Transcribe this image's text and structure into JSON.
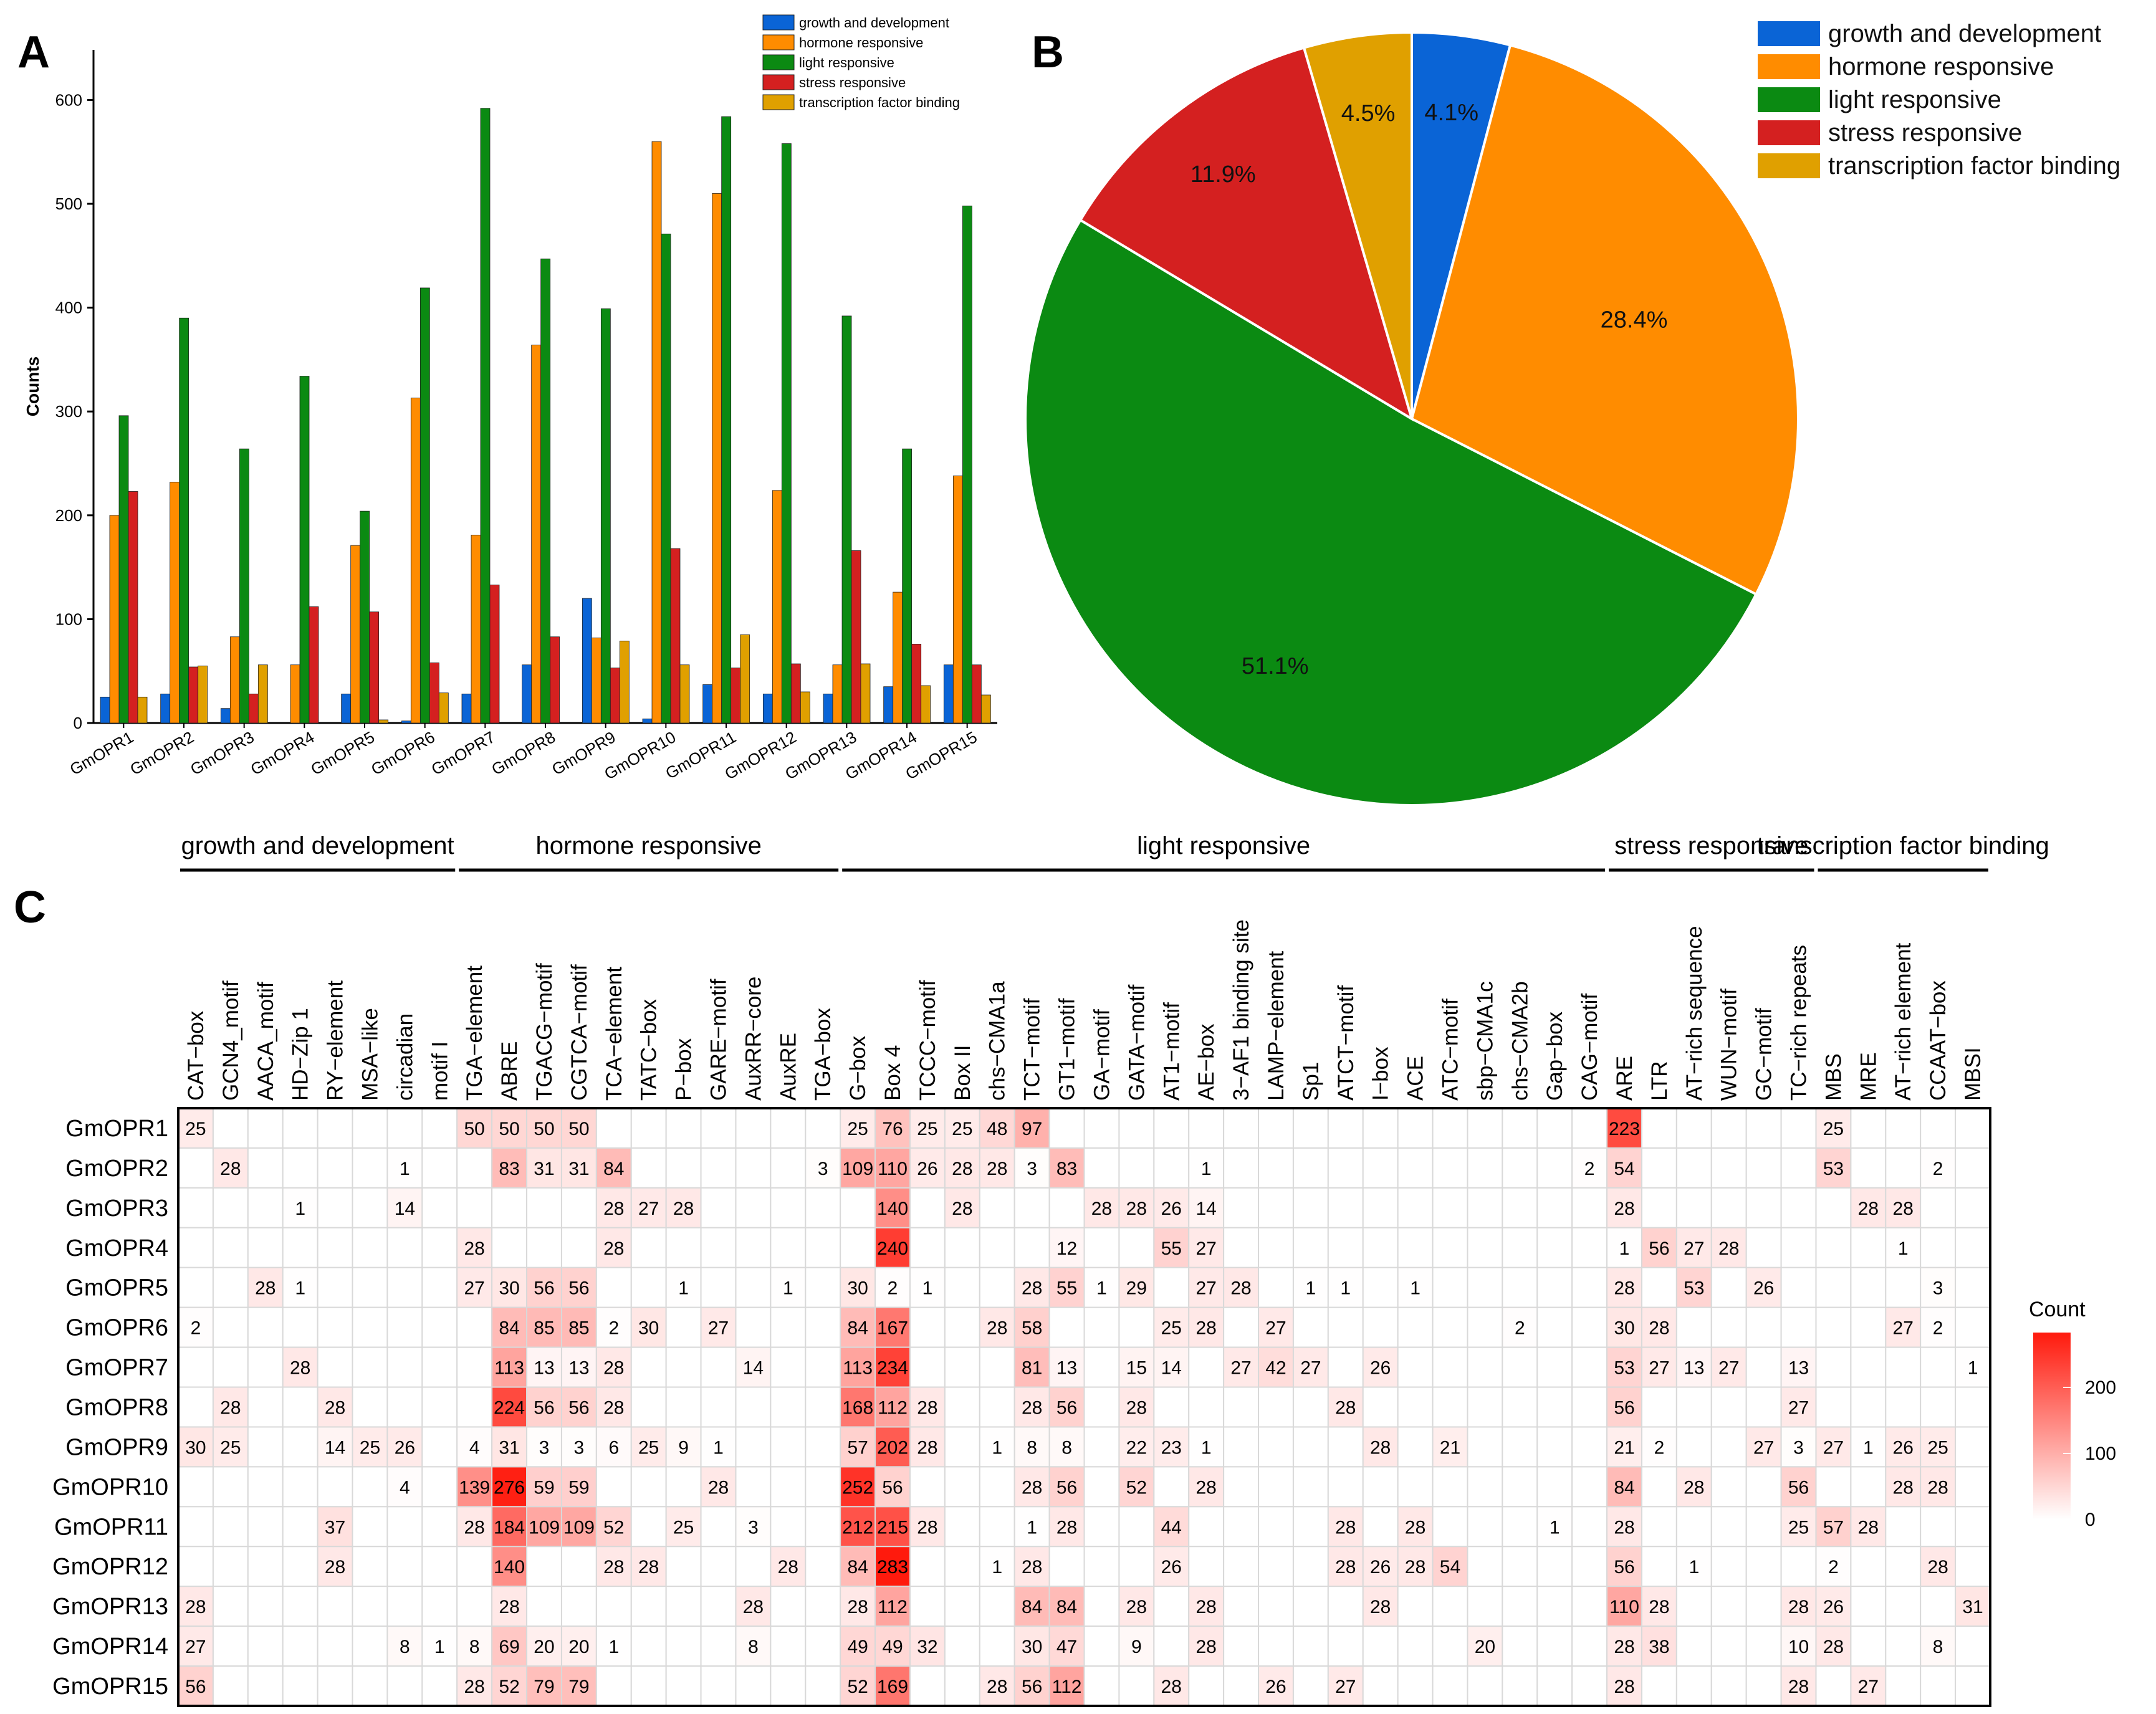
{
  "colors": {
    "growth": "#0a64d6",
    "hormone": "#ff8c00",
    "light": "#0b8a12",
    "stress": "#d42020",
    "tf": "#e0a000",
    "heat_low": "#ffffff",
    "heat_high": "#ff1a0d"
  },
  "panelA": {
    "label": "A",
    "ylabel": "Counts",
    "legend": [
      "growth and development",
      "hormone responsive",
      "light responsive",
      "stress responsive",
      "transcription factor binding"
    ],
    "chart_data": {
      "type": "bar",
      "title": "",
      "xlabel": "",
      "ylabel": "Counts",
      "ylim": [
        0,
        650
      ],
      "yticks": [
        0,
        100,
        200,
        300,
        400,
        500,
        600
      ],
      "categories": [
        "GmOPR1",
        "GmOPR2",
        "GmOPR3",
        "GmOPR4",
        "GmOPR5",
        "GmOPR6",
        "GmOPR7",
        "GmOPR8",
        "GmOPR9",
        "GmOPR10",
        "GmOPR11",
        "GmOPR12",
        "GmOPR13",
        "GmOPR14",
        "GmOPR15"
      ],
      "series": [
        {
          "name": "growth and development",
          "values": [
            25,
            28,
            14,
            0,
            28,
            2,
            28,
            56,
            120,
            4,
            37,
            28,
            28,
            35,
            56
          ]
        },
        {
          "name": "hormone responsive",
          "values": [
            200,
            232,
            83,
            56,
            171,
            313,
            181,
            364,
            82,
            560,
            510,
            224,
            56,
            126,
            238
          ]
        },
        {
          "name": "light responsive",
          "values": [
            296,
            390,
            264,
            334,
            204,
            419,
            592,
            447,
            399,
            471,
            584,
            558,
            392,
            264,
            498
          ]
        },
        {
          "name": "stress responsive",
          "values": [
            223,
            54,
            28,
            112,
            107,
            58,
            133,
            83,
            53,
            168,
            53,
            57,
            166,
            76,
            56
          ]
        },
        {
          "name": "transcription factor binding",
          "values": [
            25,
            55,
            56,
            0,
            3,
            29,
            0,
            0,
            79,
            56,
            85,
            30,
            57,
            36,
            27
          ]
        }
      ]
    }
  },
  "panelB": {
    "label": "B",
    "legend": [
      "growth and development",
      "hormone responsive",
      "light responsive",
      "stress responsive",
      "transcription factor binding"
    ],
    "chart_data": {
      "type": "pie",
      "title": "",
      "labels": [
        "growth and development",
        "hormone responsive",
        "light responsive",
        "stress responsive",
        "transcription factor binding"
      ],
      "values": [
        4.1,
        28.4,
        51.1,
        11.9,
        4.5
      ],
      "value_labels": [
        "4.1%",
        "28.4%",
        "51.1%",
        "11.9%",
        "4.5%"
      ]
    }
  },
  "panelC": {
    "label": "C",
    "legend_title": "Count",
    "legend_ticks": [
      "200",
      "100",
      "0"
    ],
    "groups": [
      {
        "name": "growth and development",
        "start": 0,
        "end": 8
      },
      {
        "name": "hormone responsive",
        "start": 8,
        "end": 19
      },
      {
        "name": "light responsive",
        "start": 19,
        "end": 41
      },
      {
        "name": "stress responsive",
        "start": 41,
        "end": 47
      },
      {
        "name": "transcription factor binding",
        "start": 47,
        "end": 52
      }
    ],
    "chart_data": {
      "type": "heatmap",
      "title": "",
      "colorbar_label": "Count",
      "colorbar_range": [
        0,
        283
      ],
      "columns": [
        "CAT−box",
        "GCN4_motif",
        "AACA_motif",
        "HD−Zip 1",
        "RY−element",
        "MSA−like",
        "circadian",
        "motif I",
        "TGA−element",
        "ABRE",
        "TGACG−motif",
        "CGTCA−motif",
        "TCA−element",
        "TATC−box",
        "P−box",
        "GARE−motif",
        "AuxRR−core",
        "AuxRE",
        "TGA−box",
        "G−box",
        "Box 4",
        "TCCC−motif",
        "Box II",
        "chs−CMA1a",
        "TCT−motif",
        "GT1−motif",
        "GA−motif",
        "GATA−motif",
        "AT1−motif",
        "AE−box",
        "3−AF1 binding site",
        "LAMP−element",
        "Sp1",
        "ATCT−motif",
        "I−box",
        "ACE",
        "ATC−motif",
        "sbp−CMA1c",
        "chs−CMA2b",
        "Gap−box",
        "CAG−motif",
        "ARE",
        "LTR",
        "AT−rich sequence",
        "WUN−motif",
        "GC−motif",
        "TC−rich repeats",
        "MBS",
        "MRE",
        "AT−rich element",
        "CCAAT−box",
        "MBSI"
      ],
      "rows": [
        "GmOPR1",
        "GmOPR2",
        "GmOPR3",
        "GmOPR4",
        "GmOPR5",
        "GmOPR6",
        "GmOPR7",
        "GmOPR8",
        "GmOPR9",
        "GmOPR10",
        "GmOPR11",
        "GmOPR12",
        "GmOPR13",
        "GmOPR14",
        "GmOPR15"
      ],
      "values": [
        [
          25,
          0,
          0,
          0,
          0,
          0,
          0,
          0,
          50,
          50,
          50,
          50,
          0,
          0,
          0,
          0,
          0,
          0,
          0,
          25,
          76,
          25,
          25,
          48,
          97,
          0,
          0,
          0,
          0,
          0,
          0,
          0,
          0,
          0,
          0,
          0,
          0,
          0,
          0,
          0,
          0,
          223,
          0,
          0,
          0,
          0,
          0,
          25,
          0,
          0,
          0,
          0
        ],
        [
          0,
          28,
          0,
          0,
          0,
          0,
          1,
          0,
          0,
          83,
          31,
          31,
          84,
          0,
          0,
          0,
          0,
          0,
          3,
          109,
          110,
          26,
          28,
          28,
          3,
          83,
          0,
          0,
          0,
          1,
          0,
          0,
          0,
          0,
          0,
          0,
          0,
          0,
          0,
          0,
          2,
          54,
          0,
          0,
          0,
          0,
          0,
          53,
          0,
          0,
          2,
          0
        ],
        [
          0,
          0,
          0,
          1,
          0,
          0,
          14,
          0,
          0,
          0,
          0,
          0,
          28,
          27,
          28,
          0,
          0,
          0,
          0,
          0,
          140,
          0,
          28,
          0,
          0,
          0,
          28,
          28,
          26,
          14,
          0,
          0,
          0,
          0,
          0,
          0,
          0,
          0,
          0,
          0,
          0,
          28,
          0,
          0,
          0,
          0,
          0,
          0,
          28,
          28,
          0,
          0
        ],
        [
          0,
          0,
          0,
          0,
          0,
          0,
          0,
          0,
          28,
          0,
          0,
          0,
          28,
          0,
          0,
          0,
          0,
          0,
          0,
          0,
          240,
          0,
          0,
          0,
          0,
          12,
          0,
          0,
          55,
          27,
          0,
          0,
          0,
          0,
          0,
          0,
          0,
          0,
          0,
          0,
          0,
          1,
          56,
          27,
          28,
          0,
          0,
          0,
          0,
          1,
          0,
          0
        ],
        [
          0,
          0,
          28,
          1,
          0,
          0,
          0,
          0,
          27,
          30,
          56,
          56,
          0,
          0,
          1,
          0,
          0,
          1,
          0,
          30,
          2,
          1,
          0,
          0,
          28,
          55,
          1,
          29,
          0,
          27,
          28,
          0,
          1,
          1,
          0,
          1,
          0,
          0,
          0,
          0,
          0,
          28,
          0,
          53,
          0,
          26,
          0,
          0,
          0,
          0,
          3,
          0
        ],
        [
          2,
          0,
          0,
          0,
          0,
          0,
          0,
          0,
          0,
          84,
          85,
          85,
          2,
          30,
          0,
          27,
          0,
          0,
          0,
          84,
          167,
          0,
          0,
          28,
          58,
          0,
          0,
          0,
          25,
          28,
          0,
          27,
          0,
          0,
          0,
          0,
          0,
          0,
          2,
          0,
          0,
          30,
          28,
          0,
          0,
          0,
          0,
          0,
          0,
          27,
          2,
          0
        ],
        [
          0,
          0,
          0,
          28,
          0,
          0,
          0,
          0,
          0,
          113,
          13,
          13,
          28,
          0,
          0,
          0,
          14,
          0,
          0,
          113,
          234,
          0,
          0,
          0,
          81,
          13,
          0,
          15,
          14,
          0,
          27,
          42,
          27,
          0,
          26,
          0,
          0,
          0,
          0,
          0,
          0,
          53,
          27,
          13,
          27,
          0,
          13,
          0,
          0,
          0,
          0,
          1
        ],
        [
          0,
          28,
          0,
          0,
          28,
          0,
          0,
          0,
          0,
          224,
          56,
          56,
          28,
          0,
          0,
          0,
          0,
          0,
          0,
          168,
          112,
          28,
          0,
          0,
          28,
          56,
          0,
          28,
          0,
          0,
          0,
          0,
          0,
          28,
          0,
          0,
          0,
          0,
          0,
          0,
          0,
          56,
          0,
          0,
          0,
          0,
          27,
          0,
          0,
          0,
          0,
          0
        ],
        [
          30,
          25,
          0,
          0,
          14,
          25,
          26,
          0,
          4,
          31,
          3,
          3,
          6,
          25,
          9,
          1,
          0,
          0,
          0,
          57,
          202,
          28,
          0,
          1,
          8,
          8,
          0,
          22,
          23,
          1,
          0,
          0,
          0,
          0,
          28,
          0,
          21,
          0,
          0,
          0,
          0,
          21,
          2,
          0,
          0,
          27,
          3,
          27,
          1,
          26,
          25,
          0
        ],
        [
          0,
          0,
          0,
          0,
          0,
          0,
          4,
          0,
          139,
          276,
          59,
          59,
          0,
          0,
          0,
          28,
          0,
          0,
          0,
          252,
          56,
          0,
          0,
          0,
          28,
          56,
          0,
          52,
          0,
          28,
          0,
          0,
          0,
          0,
          0,
          0,
          0,
          0,
          0,
          0,
          0,
          84,
          0,
          28,
          0,
          0,
          56,
          0,
          0,
          28,
          28,
          0
        ],
        [
          0,
          0,
          0,
          0,
          37,
          0,
          0,
          0,
          28,
          184,
          109,
          109,
          52,
          0,
          25,
          0,
          3,
          0,
          0,
          212,
          215,
          28,
          0,
          0,
          1,
          28,
          0,
          0,
          44,
          0,
          0,
          0,
          0,
          28,
          0,
          28,
          0,
          0,
          0,
          1,
          0,
          28,
          0,
          0,
          0,
          0,
          25,
          57,
          28,
          0,
          0,
          0
        ],
        [
          0,
          0,
          0,
          0,
          28,
          0,
          0,
          0,
          0,
          140,
          0,
          0,
          28,
          28,
          0,
          0,
          0,
          28,
          0,
          84,
          283,
          0,
          0,
          1,
          28,
          0,
          0,
          0,
          26,
          0,
          0,
          0,
          0,
          28,
          26,
          28,
          54,
          0,
          0,
          0,
          0,
          56,
          0,
          1,
          0,
          0,
          0,
          2,
          0,
          0,
          28,
          0
        ],
        [
          28,
          0,
          0,
          0,
          0,
          0,
          0,
          0,
          0,
          28,
          0,
          0,
          0,
          0,
          0,
          0,
          28,
          0,
          0,
          28,
          112,
          0,
          0,
          0,
          84,
          84,
          0,
          28,
          0,
          28,
          0,
          0,
          0,
          0,
          28,
          0,
          0,
          0,
          0,
          0,
          0,
          110,
          28,
          0,
          0,
          0,
          28,
          26,
          0,
          0,
          0,
          31
        ],
        [
          27,
          0,
          0,
          0,
          0,
          0,
          8,
          1,
          8,
          69,
          20,
          20,
          1,
          0,
          0,
          0,
          8,
          0,
          0,
          49,
          49,
          32,
          0,
          0,
          30,
          47,
          0,
          9,
          0,
          28,
          0,
          0,
          0,
          0,
          0,
          0,
          0,
          20,
          0,
          0,
          0,
          28,
          38,
          0,
          0,
          0,
          10,
          28,
          0,
          0,
          8,
          0
        ],
        [
          56,
          0,
          0,
          0,
          0,
          0,
          0,
          0,
          28,
          52,
          79,
          79,
          0,
          0,
          0,
          0,
          0,
          0,
          0,
          52,
          169,
          0,
          0,
          28,
          56,
          112,
          0,
          0,
          28,
          0,
          0,
          26,
          0,
          27,
          0,
          0,
          0,
          0,
          0,
          0,
          0,
          28,
          0,
          0,
          0,
          0,
          28,
          0,
          27,
          0,
          0,
          0
        ]
      ]
    }
  }
}
